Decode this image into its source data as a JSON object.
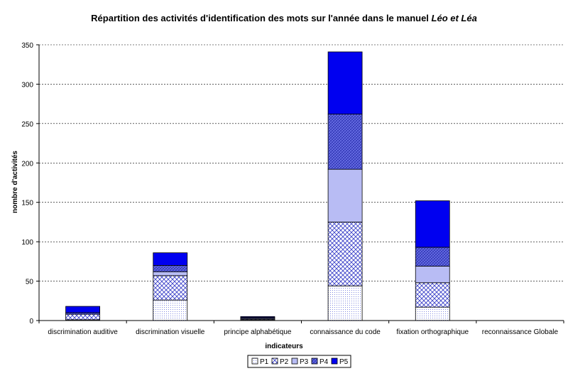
{
  "chart_data": {
    "type": "bar",
    "stacked": true,
    "title_main": "Répartition des activités d'identification des mots sur l'année dans le manuel ",
    "title_emphasis": "Léo et Léa",
    "xlabel": "indicateurs",
    "ylabel": "nombre d'activités",
    "ylim": [
      0,
      350
    ],
    "yticks": [
      0,
      50,
      100,
      150,
      200,
      250,
      300,
      350
    ],
    "grid": true,
    "legend_position": "bottom",
    "categories": [
      "discrimination auditive",
      "discrimination visuelle",
      "principe alphabétique",
      "connaissance du code",
      "fixation orthographique",
      "reconnaissance Globale"
    ],
    "series": [
      {
        "name": "P1",
        "color": "#f2f4ff",
        "pattern": "dots",
        "values": [
          1,
          26,
          1,
          44,
          17,
          0
        ]
      },
      {
        "name": "P2",
        "color": "#ffffff",
        "pattern": "cross",
        "values": [
          7,
          31,
          1,
          81,
          31,
          0
        ]
      },
      {
        "name": "P3",
        "color": "#b8bcf4",
        "pattern": "solid",
        "values": [
          0,
          5,
          1,
          67,
          21,
          0
        ]
      },
      {
        "name": "P4",
        "color": "#5b62e2",
        "pattern": "diag",
        "values": [
          2,
          8,
          1,
          70,
          24,
          0
        ]
      },
      {
        "name": "P5",
        "color": "#0000f0",
        "pattern": "solid",
        "values": [
          8,
          16,
          1,
          79,
          59,
          0
        ]
      }
    ]
  }
}
